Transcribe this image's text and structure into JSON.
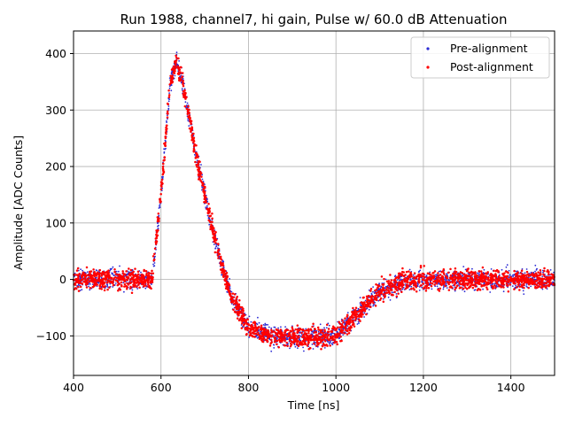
{
  "chart_data": {
    "type": "scatter",
    "title": "Run 1988, channel7, hi gain, Pulse w/ 60.0 dB Attenuation",
    "xlabel": "Time [ns]",
    "ylabel": "Amplitude [ADC Counts]",
    "xlim": [
      400,
      1500
    ],
    "ylim": [
      -170,
      440
    ],
    "x_ticks": [
      400,
      600,
      800,
      1000,
      1200,
      1400
    ],
    "y_ticks": [
      -100,
      0,
      100,
      200,
      300,
      400
    ],
    "y_tick_labels": [
      "−100",
      "0",
      "100",
      "200",
      "300",
      "400"
    ],
    "grid": true,
    "legend_position": "top-right",
    "noise_band_adc": 30,
    "series": [
      {
        "name": "Pre-alignment",
        "color": "#2b2bd4",
        "marker": "dot",
        "x": [
          400,
          500,
          580,
          600,
          620,
          635,
          650,
          680,
          720,
          760,
          800,
          850,
          900,
          950,
          1000,
          1050,
          1100,
          1150,
          1200,
          1300,
          1400,
          1500
        ],
        "y": [
          0,
          0,
          0,
          150,
          340,
          385,
          350,
          220,
          80,
          -30,
          -85,
          -100,
          -103,
          -103,
          -100,
          -60,
          -20,
          -5,
          0,
          0,
          0,
          0
        ]
      },
      {
        "name": "Post-alignment",
        "color": "#ff0000",
        "marker": "dot",
        "x": [
          400,
          500,
          580,
          600,
          620,
          635,
          650,
          680,
          720,
          760,
          800,
          850,
          900,
          950,
          1000,
          1050,
          1100,
          1150,
          1200,
          1300,
          1400,
          1500
        ],
        "y": [
          0,
          0,
          0,
          150,
          340,
          385,
          350,
          220,
          80,
          -30,
          -85,
          -100,
          -103,
          -103,
          -100,
          -60,
          -20,
          -5,
          0,
          0,
          0,
          0
        ]
      }
    ]
  }
}
